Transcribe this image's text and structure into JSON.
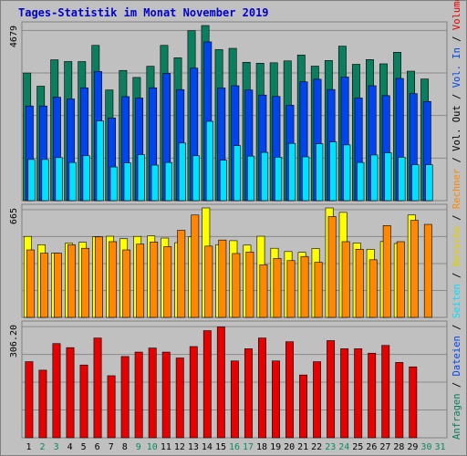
{
  "title": "Tages-Statistik im Monat November 2019",
  "chart_data": [
    {
      "type": "bar",
      "categories": [
        "1",
        "2",
        "3",
        "4",
        "5",
        "6",
        "7",
        "8",
        "9",
        "10",
        "11",
        "12",
        "13",
        "14",
        "15",
        "16",
        "17",
        "18",
        "19",
        "20",
        "21",
        "22",
        "23",
        "24",
        "25",
        "26",
        "27",
        "28",
        "29",
        "30",
        "31"
      ],
      "ylim": [
        0,
        4679
      ],
      "ylabel_max": "4679",
      "series": [
        {
          "name": "Anfragen",
          "color": "#0a7e5e",
          "values": [
            3410,
            3058,
            3764,
            3717,
            3716,
            4149,
            2958,
            3479,
            3292,
            3591,
            4149,
            3817,
            4541,
            4679,
            4035,
            4070,
            3697,
            3672,
            3684,
            3735,
            3891,
            3594,
            3744,
            4128,
            3643,
            3770,
            3656,
            3965,
            3460,
            3250,
            null
          ]
        },
        {
          "name": "Dateien",
          "color": "#0044ee",
          "values": [
            2530,
            2530,
            2764,
            2717,
            3016,
            3449,
            2209,
            2779,
            2742,
            3016,
            3399,
            2967,
            3541,
            4241,
            3010,
            3070,
            2957,
            2822,
            2784,
            2549,
            3176,
            3244,
            2969,
            3303,
            2743,
            3070,
            2806,
            3265,
            2860,
            2650,
            null
          ]
        },
        {
          "name": "Seiten",
          "color": "#00e0ff",
          "values": [
            1100,
            1100,
            1150,
            1020,
            1200,
            2130,
            900,
            1010,
            1230,
            950,
            1020,
            1540,
            1200,
            2120,
            1080,
            1470,
            1190,
            1290,
            1160,
            1530,
            1170,
            1520,
            1570,
            1490,
            1020,
            1220,
            1280,
            1160,
            960,
            960,
            null
          ]
        }
      ]
    },
    {
      "type": "bar",
      "categories": [
        "1",
        "2",
        "3",
        "4",
        "5",
        "6",
        "7",
        "8",
        "9",
        "10",
        "11",
        "12",
        "13",
        "14",
        "15",
        "16",
        "17",
        "18",
        "19",
        "20",
        "21",
        "22",
        "23",
        "24",
        "25",
        "26",
        "27",
        "28",
        "29",
        "30",
        "31"
      ],
      "ylim": [
        0,
        665
      ],
      "ylabel_max": "665",
      "series": [
        {
          "name": "Besuche",
          "color": "#ffff00",
          "values": [
            492,
            441,
            390,
            450,
            456,
            490,
            493,
            478,
            492,
            495,
            482,
            454,
            490,
            665,
            442,
            466,
            439,
            493,
            420,
            400,
            395,
            418,
            665,
            638,
            452,
            414,
            461,
            449,
            622,
            null,
            null
          ]
        },
        {
          "name": "Rechner",
          "color": "#ff8800",
          "values": [
            410,
            390,
            390,
            441,
            420,
            489,
            460,
            410,
            445,
            458,
            430,
            529,
            622,
            433,
            470,
            388,
            397,
            320,
            358,
            345,
            370,
            335,
            613,
            460,
            414,
            350,
            558,
            460,
            590,
            565,
            null
          ]
        }
      ]
    },
    {
      "type": "bar",
      "categories": [
        "1",
        "2",
        "3",
        "4",
        "5",
        "6",
        "7",
        "8",
        "9",
        "10",
        "11",
        "12",
        "13",
        "14",
        "15",
        "16",
        "17",
        "18",
        "19",
        "20",
        "21",
        "22",
        "23",
        "24",
        "25",
        "26",
        "27",
        "28",
        "29",
        "30",
        "31"
      ],
      "ylim": [
        0,
        306.2
      ],
      "ylabel_max": "306.20",
      "series": [
        {
          "name": "Volumen",
          "color": "#e60000",
          "values": [
            206,
            183,
            255,
            244,
            197,
            270,
            168,
            220,
            232,
            243,
            232,
            216,
            247,
            290,
            300,
            208,
            241,
            270,
            208,
            260,
            170,
            206,
            263,
            241,
            241,
            229,
            250,
            204,
            192,
            null,
            null
          ]
        }
      ]
    }
  ],
  "right_labels": {
    "top": [
      {
        "text": "Anfragen",
        "color": "#0a7e5e"
      },
      {
        "text": " / ",
        "color": "#000000"
      },
      {
        "text": "Dateien",
        "color": "#0044ee"
      },
      {
        "text": " / ",
        "color": "#000000"
      },
      {
        "text": "Seiten",
        "color": "#00e0ff"
      },
      {
        "text": " / ",
        "color": "#000000"
      },
      {
        "text": "Besuche",
        "color": "#e0d000"
      },
      {
        "text": " / ",
        "color": "#000000"
      },
      {
        "text": "Rechner",
        "color": "#ff8800"
      },
      {
        "text": " / ",
        "color": "#000000"
      },
      {
        "text": "Vol. Out",
        "color": "#000000"
      },
      {
        "text": " / ",
        "color": "#000000"
      },
      {
        "text": "Vol. In",
        "color": "#0044ee"
      },
      {
        "text": " / ",
        "color": "#000000"
      },
      {
        "text": "Volumen",
        "color": "#e60000"
      }
    ]
  },
  "day_label_colors": {
    "weekday": "#000000",
    "weekend": "#0a8a5e"
  },
  "weekend_days": [
    "2",
    "3",
    "9",
    "10",
    "16",
    "17",
    "23",
    "24",
    "30",
    "31"
  ]
}
